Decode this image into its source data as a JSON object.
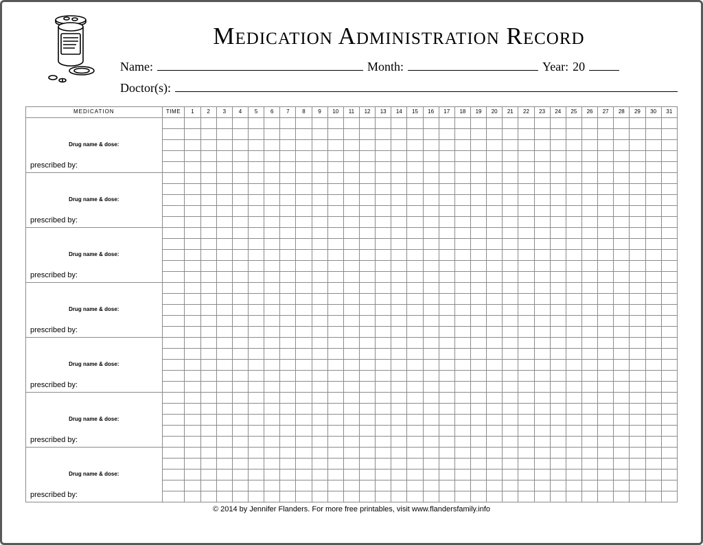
{
  "title": "Medication Administration Record",
  "fields": {
    "name_label": "Name:",
    "month_label": "Month:",
    "year_label": "Year:",
    "year_prefix": "20",
    "doctors_label": "Doctor(s):"
  },
  "table": {
    "col_medication": "MEDICATION",
    "col_time": "TIME",
    "days": [
      "1",
      "2",
      "3",
      "4",
      "5",
      "6",
      "7",
      "8",
      "9",
      "10",
      "11",
      "12",
      "13",
      "14",
      "15",
      "16",
      "17",
      "18",
      "19",
      "20",
      "21",
      "22",
      "23",
      "24",
      "25",
      "26",
      "27",
      "28",
      "29",
      "30",
      "31"
    ],
    "drug_label": "Drug name & dose:",
    "prescribed_label": "prescribed by:",
    "num_drug_blocks": 7,
    "rows_per_block": 5
  },
  "footer": "© 2014 by Jennifer Flanders. For more free printables, visit www.flandersfamily.info",
  "style": {
    "border_color": "#8a8a8a",
    "text_color": "#000000",
    "background": "#ffffff",
    "title_fontsize_pt": 26,
    "body_fontsize_pt": 14,
    "table_font_pt": 8
  }
}
